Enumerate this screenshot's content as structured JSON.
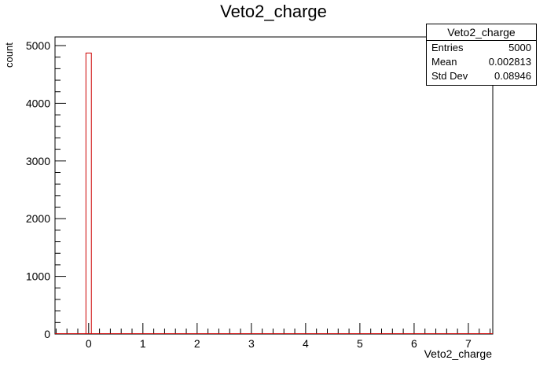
{
  "chart_data": {
    "type": "bar",
    "title": "Veto2_charge",
    "xlabel": "Veto2_charge",
    "ylabel": "count",
    "xlim": [
      -0.62,
      7.45
    ],
    "ylim": [
      0,
      5150
    ],
    "x_ticks": [
      0,
      1,
      2,
      3,
      4,
      5,
      6,
      7
    ],
    "y_ticks": [
      0,
      1000,
      2000,
      3000,
      4000,
      5000
    ],
    "bins": [
      {
        "x_low": -0.05,
        "x_high": 0.05,
        "count": 4870
      }
    ],
    "line_color": "#cc0000",
    "grid": false,
    "legend": "none"
  },
  "stats_box": {
    "title": "Veto2_charge",
    "rows": [
      {
        "label": "Entries",
        "value": "5000"
      },
      {
        "label": "Mean",
        "value": "0.002813"
      },
      {
        "label": "Std Dev",
        "value": "0.08946"
      }
    ]
  }
}
